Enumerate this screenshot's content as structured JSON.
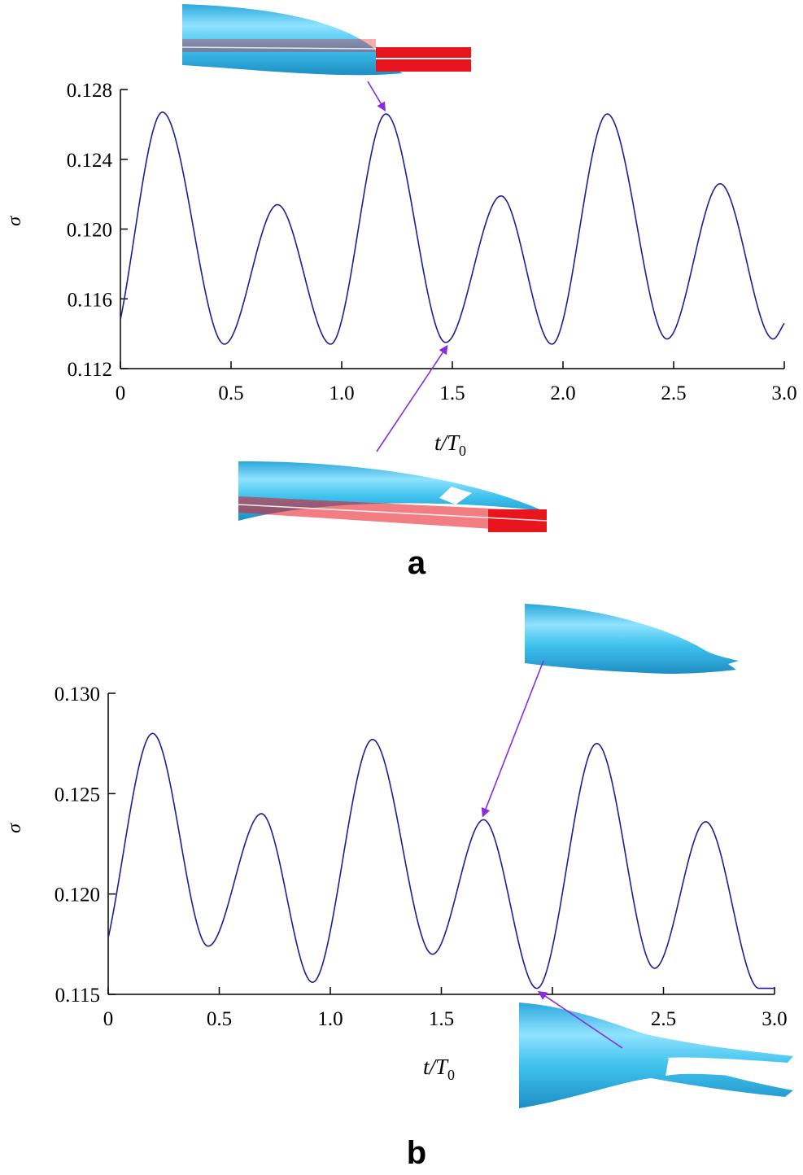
{
  "colors": {
    "curve": "#1e1e96",
    "axis": "#000000",
    "arrow": "#8a2be2",
    "foil": "#3ec2ee",
    "rod": "#e8141e"
  },
  "chart_data": [
    {
      "panel_label": "a",
      "type": "line",
      "xlabel": "t/T0",
      "xlabel_main": "t/T",
      "xlabel_sub": "0",
      "ylabel": "σ",
      "xlim": [
        0,
        3.0
      ],
      "ylim": [
        0.112,
        0.128
      ],
      "xticks": [
        "0",
        "0.5",
        "1.0",
        "1.5",
        "2.0",
        "2.5",
        "3.0"
      ],
      "yticks": [
        "0.112",
        "0.116",
        "0.120",
        "0.124",
        "0.128"
      ],
      "series": [
        {
          "x": [
            0,
            0.19,
            0.47,
            0.71,
            0.95,
            1.2,
            1.47,
            1.72,
            1.95,
            2.2,
            2.47,
            2.71,
            2.95,
            3.0
          ],
          "y": [
            0.1148,
            0.1267,
            0.1134,
            0.1214,
            0.1134,
            0.1266,
            0.1135,
            0.1219,
            0.1134,
            0.1266,
            0.1137,
            0.1226,
            0.1137,
            0.1146
          ]
        }
      ],
      "annotations": [
        {
          "target": "peak",
          "x": 1.2,
          "y": 0.1266,
          "inset": "top"
        },
        {
          "target": "trough",
          "x": 1.47,
          "y": 0.1135,
          "inset": "bottom"
        }
      ]
    },
    {
      "panel_label": "b",
      "type": "line",
      "xlabel": "t/T0",
      "xlabel_main": "t/T",
      "xlabel_sub": "0",
      "ylabel": "σ",
      "xlim": [
        0,
        3.0
      ],
      "ylim": [
        0.115,
        0.13
      ],
      "xticks": [
        "0",
        "0.5",
        "1.0",
        "1.5",
        "2.0",
        "2.5",
        "3.0"
      ],
      "yticks": [
        "0.115",
        "0.120",
        "0.125",
        "0.130"
      ],
      "series": [
        {
          "x": [
            0,
            0.2,
            0.45,
            0.69,
            0.92,
            1.19,
            1.46,
            1.69,
            1.93,
            2.2,
            2.46,
            2.69,
            2.93,
            3.0
          ],
          "y": [
            0.1178,
            0.128,
            0.1174,
            0.124,
            0.1156,
            0.1277,
            0.117,
            0.1237,
            0.1153,
            0.1275,
            0.1163,
            0.1236,
            0.1153,
            0.1153
          ]
        }
      ],
      "annotations": [
        {
          "target": "peak",
          "x": 1.69,
          "y": 0.1237,
          "inset": "top"
        },
        {
          "target": "trough",
          "x": 1.93,
          "y": 0.1153,
          "inset": "bottom"
        }
      ]
    }
  ]
}
